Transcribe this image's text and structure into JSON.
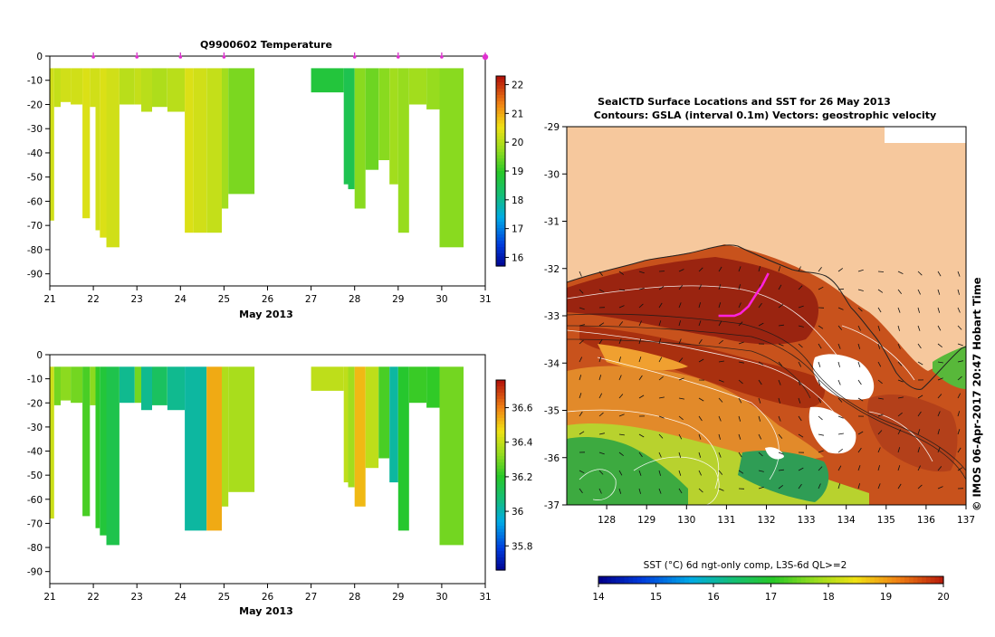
{
  "chart_data": [
    {
      "type": "heatmap",
      "name": "temperature-profile",
      "title": "Q9900602  Temperature",
      "xlabel": "May 2013",
      "x_ticks": [
        "21",
        "22",
        "23",
        "24",
        "25",
        "26",
        "27",
        "28",
        "29",
        "30",
        "31"
      ],
      "y_ticks": [
        "0",
        "-10",
        "-20",
        "-30",
        "-40",
        "-50",
        "-60",
        "-70",
        "-80",
        "-90"
      ],
      "xlim": [
        21,
        31
      ],
      "ylim": [
        -95,
        0
      ],
      "profile_markers": [
        22,
        23,
        24,
        25,
        28,
        29,
        30,
        31
      ],
      "colorbar": {
        "ticks": [
          "22",
          "21",
          "20",
          "19",
          "18",
          "17",
          "16"
        ],
        "range": [
          15.7,
          22.3
        ]
      },
      "profiles": [
        {
          "x0": 21.0,
          "x1": 21.1,
          "depth": -68,
          "value": 20.3
        },
        {
          "x0": 21.1,
          "x1": 21.25,
          "depth": -21,
          "value": 20.2
        },
        {
          "x0": 21.25,
          "x1": 21.48,
          "depth": -19,
          "value": 20.3
        },
        {
          "x0": 21.48,
          "x1": 21.75,
          "depth": -20,
          "value": 20.3
        },
        {
          "x0": 21.75,
          "x1": 21.92,
          "depth": -67,
          "value": 20.4
        },
        {
          "x0": 21.92,
          "x1": 22.05,
          "depth": -21,
          "value": 20.3
        },
        {
          "x0": 22.05,
          "x1": 22.15,
          "depth": -72,
          "value": 20.3
        },
        {
          "x0": 22.15,
          "x1": 22.3,
          "depth": -75,
          "value": 20.4
        },
        {
          "x0": 22.3,
          "x1": 22.6,
          "depth": -79,
          "value": 20.3
        },
        {
          "x0": 22.6,
          "x1": 22.95,
          "depth": -20,
          "value": 20.1
        },
        {
          "x0": 22.95,
          "x1": 23.1,
          "depth": -20,
          "value": 20.2
        },
        {
          "x0": 23.1,
          "x1": 23.35,
          "depth": -23,
          "value": 20.1
        },
        {
          "x0": 23.35,
          "x1": 23.7,
          "depth": -21,
          "value": 20.0
        },
        {
          "x0": 23.7,
          "x1": 24.1,
          "depth": -23,
          "value": 20.1
        },
        {
          "x0": 24.1,
          "x1": 24.3,
          "depth": -73,
          "value": 20.4
        },
        {
          "x0": 24.3,
          "x1": 24.6,
          "depth": -73,
          "value": 20.3
        },
        {
          "x0": 24.6,
          "x1": 24.95,
          "depth": -73,
          "value": 20.2
        },
        {
          "x0": 24.95,
          "x1": 25.1,
          "depth": -63,
          "value": 19.9
        },
        {
          "x0": 25.1,
          "x1": 25.7,
          "depth": -57,
          "value": 19.6
        },
        {
          "x0": 27.0,
          "x1": 27.75,
          "depth": -15,
          "value": 18.8
        },
        {
          "x0": 27.75,
          "x1": 27.85,
          "depth": -53,
          "value": 18.6
        },
        {
          "x0": 27.85,
          "x1": 28.0,
          "depth": -55,
          "value": 18.6
        },
        {
          "x0": 28.0,
          "x1": 28.25,
          "depth": -63,
          "value": 19.7
        },
        {
          "x0": 28.25,
          "x1": 28.55,
          "depth": -47,
          "value": 19.5
        },
        {
          "x0": 28.55,
          "x1": 28.8,
          "depth": -43,
          "value": 19.7
        },
        {
          "x0": 28.8,
          "x1": 29.0,
          "depth": -53,
          "value": 19.9
        },
        {
          "x0": 29.0,
          "x1": 29.25,
          "depth": -73,
          "value": 19.8
        },
        {
          "x0": 29.25,
          "x1": 29.65,
          "depth": -20,
          "value": 19.9
        },
        {
          "x0": 29.65,
          "x1": 29.95,
          "depth": -22,
          "value": 19.8
        },
        {
          "x0": 29.95,
          "x1": 30.5,
          "depth": -79,
          "value": 19.7
        }
      ]
    },
    {
      "type": "heatmap",
      "name": "salinity-profile",
      "title": "",
      "xlabel": "May 2013",
      "x_ticks": [
        "21",
        "22",
        "23",
        "24",
        "25",
        "26",
        "27",
        "28",
        "29",
        "30",
        "31"
      ],
      "y_ticks": [
        "0",
        "-10",
        "-20",
        "-30",
        "-40",
        "-50",
        "-60",
        "-70",
        "-80",
        "-90"
      ],
      "xlim": [
        21,
        31
      ],
      "ylim": [
        -95,
        0
      ],
      "colorbar": {
        "ticks": [
          "36.6",
          "36.4",
          "36.2",
          "36",
          "35.8"
        ],
        "range": [
          35.66,
          36.76
        ]
      },
      "profiles": [
        {
          "x0": 21.0,
          "x1": 21.1,
          "depth": -68,
          "value": 36.42
        },
        {
          "x0": 21.1,
          "x1": 21.25,
          "depth": -21,
          "value": 36.3
        },
        {
          "x0": 21.25,
          "x1": 21.48,
          "depth": -19,
          "value": 36.33
        },
        {
          "x0": 21.48,
          "x1": 21.75,
          "depth": -20,
          "value": 36.3
        },
        {
          "x0": 21.75,
          "x1": 21.92,
          "depth": -67,
          "value": 36.25
        },
        {
          "x0": 21.92,
          "x1": 22.05,
          "depth": -21,
          "value": 36.33
        },
        {
          "x0": 22.05,
          "x1": 22.15,
          "depth": -72,
          "value": 36.22
        },
        {
          "x0": 22.15,
          "x1": 22.3,
          "depth": -75,
          "value": 36.18
        },
        {
          "x0": 22.3,
          "x1": 22.6,
          "depth": -79,
          "value": 36.15
        },
        {
          "x0": 22.6,
          "x1": 22.95,
          "depth": -20,
          "value": 36.05
        },
        {
          "x0": 22.95,
          "x1": 23.1,
          "depth": -20,
          "value": 36.3
        },
        {
          "x0": 23.1,
          "x1": 23.35,
          "depth": -23,
          "value": 36.05
        },
        {
          "x0": 23.35,
          "x1": 23.7,
          "depth": -21,
          "value": 36.12
        },
        {
          "x0": 23.7,
          "x1": 24.1,
          "depth": -23,
          "value": 36.05
        },
        {
          "x0": 24.1,
          "x1": 24.6,
          "depth": -73,
          "value": 36.03
        },
        {
          "x0": 24.6,
          "x1": 24.95,
          "depth": -73,
          "value": 36.55
        },
        {
          "x0": 24.95,
          "x1": 25.1,
          "depth": -63,
          "value": 36.38
        },
        {
          "x0": 25.1,
          "x1": 25.7,
          "depth": -57,
          "value": 36.37
        },
        {
          "x0": 27.0,
          "x1": 27.75,
          "depth": -15,
          "value": 36.4
        },
        {
          "x0": 27.75,
          "x1": 27.85,
          "depth": -53,
          "value": 36.4
        },
        {
          "x0": 27.85,
          "x1": 28.0,
          "depth": -55,
          "value": 36.36
        },
        {
          "x0": 28.0,
          "x1": 28.25,
          "depth": -63,
          "value": 36.53
        },
        {
          "x0": 28.25,
          "x1": 28.55,
          "depth": -47,
          "value": 36.4
        },
        {
          "x0": 28.55,
          "x1": 28.8,
          "depth": -43,
          "value": 36.25
        },
        {
          "x0": 28.8,
          "x1": 29.0,
          "depth": -53,
          "value": 36.03
        },
        {
          "x0": 29.0,
          "x1": 29.25,
          "depth": -73,
          "value": 36.2
        },
        {
          "x0": 29.25,
          "x1": 29.65,
          "depth": -20,
          "value": 36.23
        },
        {
          "x0": 29.65,
          "x1": 29.95,
          "depth": -22,
          "value": 36.22
        },
        {
          "x0": 29.95,
          "x1": 30.5,
          "depth": -79,
          "value": 36.3
        }
      ]
    },
    {
      "type": "heatmap",
      "name": "sst-map",
      "title": "SealCTD Surface Locations and SST for 26 May 2013",
      "subtitle": "Contours: GSLA (interval 0.1m) Vectors: geostrophic velocity",
      "xlabel": "",
      "x_ticks": [
        "128",
        "129",
        "130",
        "131",
        "132",
        "133",
        "134",
        "135",
        "136",
        "137"
      ],
      "y_ticks": [
        "-29",
        "-30",
        "-31",
        "-32",
        "-33",
        "-34",
        "-35",
        "-36",
        "-37"
      ],
      "xlim": [
        127.0,
        137.0
      ],
      "ylim": [
        -37.0,
        -29.0
      ],
      "colorbar": {
        "label": "SST (°C) 6d ngt-only comp, L3S-6d QL>=2",
        "ticks": [
          "14",
          "15",
          "16",
          "17",
          "18",
          "19",
          "20"
        ],
        "range": [
          14,
          20
        ]
      },
      "seal_track": [
        [
          132.05,
          -32.1
        ],
        [
          131.9,
          -32.35
        ],
        [
          131.7,
          -32.6
        ],
        [
          131.55,
          -32.8
        ],
        [
          131.35,
          -32.95
        ],
        [
          131.2,
          -33.0
        ],
        [
          131.05,
          -33.0
        ],
        [
          130.8,
          -33.0
        ]
      ],
      "stamp": "© IMOS 06-Apr-2017 20:47 Hobart Time"
    }
  ]
}
